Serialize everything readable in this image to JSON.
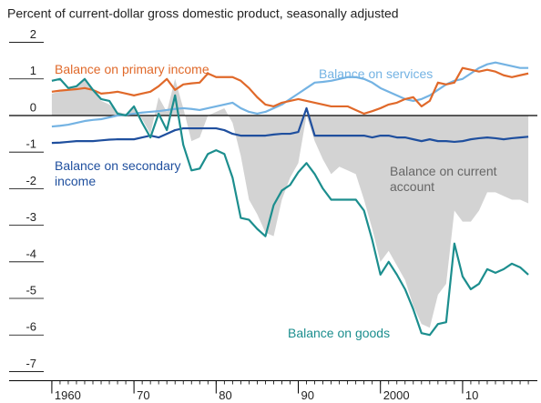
{
  "chart_data": {
    "type": "line",
    "title": "Percent of current-dollar gross domestic product, seasonally adjusted",
    "x": [
      1960,
      1961,
      1962,
      1963,
      1964,
      1965,
      1966,
      1967,
      1968,
      1969,
      1970,
      1971,
      1972,
      1973,
      1974,
      1975,
      1976,
      1977,
      1978,
      1979,
      1980,
      1981,
      1982,
      1983,
      1984,
      1985,
      1986,
      1987,
      1988,
      1989,
      1990,
      1991,
      1992,
      1993,
      1994,
      1995,
      1996,
      1997,
      1998,
      1999,
      2000,
      2001,
      2002,
      2003,
      2004,
      2005,
      2006,
      2007,
      2008,
      2009,
      2010,
      2011,
      2012,
      2013,
      2014,
      2015,
      2016,
      2017,
      2018
    ],
    "xlim": [
      1954.8,
      2019.1
    ],
    "xticks": [
      {
        "value": 1960,
        "label": "1960"
      },
      {
        "value": 1970,
        "label": "70"
      },
      {
        "value": 1980,
        "label": "80"
      },
      {
        "value": 1990,
        "label": "90"
      },
      {
        "value": 2000,
        "label": "2000"
      },
      {
        "value": 2010,
        "label": "10"
      }
    ],
    "ylim": [
      -7.25,
      2.3
    ],
    "yticks": [
      2,
      1,
      0,
      -1,
      -2,
      -3,
      -4,
      -5,
      -6,
      -7
    ],
    "series": [
      {
        "name": "Balance on current account",
        "kind": "area",
        "color": "#d3d3d3",
        "values": [
          0.6,
          0.65,
          0.7,
          0.8,
          1.0,
          0.7,
          0.4,
          0.3,
          0.1,
          0.05,
          0.2,
          -0.1,
          -0.5,
          0.5,
          0.1,
          1.0,
          0.2,
          -0.7,
          -0.6,
          0.0,
          0.1,
          0.2,
          -0.2,
          -1.1,
          -2.3,
          -2.7,
          -3.2,
          -3.3,
          -2.3,
          -1.7,
          -1.3,
          0.0,
          -0.7,
          -1.2,
          -1.6,
          -1.4,
          -1.5,
          -1.6,
          -2.3,
          -3.1,
          -4.0,
          -3.7,
          -4.1,
          -4.5,
          -5.2,
          -5.7,
          -5.8,
          -4.9,
          -4.6,
          -2.6,
          -2.9,
          -2.9,
          -2.6,
          -2.1,
          -2.1,
          -2.2,
          -2.3,
          -2.3,
          -2.4
        ]
      },
      {
        "name": "Balance on services",
        "color": "#74b3e3",
        "values": [
          -0.3,
          -0.28,
          -0.25,
          -0.2,
          -0.15,
          -0.12,
          -0.1,
          -0.05,
          0,
          0.02,
          0.05,
          0.08,
          0.1,
          0.12,
          0.15,
          0.18,
          0.2,
          0.18,
          0.15,
          0.2,
          0.25,
          0.3,
          0.35,
          0.2,
          0.1,
          0.05,
          0.1,
          0.2,
          0.3,
          0.45,
          0.6,
          0.75,
          0.9,
          0.92,
          0.95,
          1.0,
          1.05,
          1.05,
          1.0,
          0.9,
          0.75,
          0.65,
          0.55,
          0.45,
          0.4,
          0.45,
          0.55,
          0.7,
          0.85,
          0.95,
          1.0,
          1.15,
          1.3,
          1.4,
          1.45,
          1.4,
          1.35,
          1.3,
          1.3
        ]
      },
      {
        "name": "Balance on primary income",
        "color": "#e0692a",
        "values": [
          0.65,
          0.68,
          0.7,
          0.72,
          0.75,
          0.7,
          0.6,
          0.62,
          0.65,
          0.6,
          0.55,
          0.6,
          0.65,
          0.8,
          1.0,
          0.7,
          0.85,
          0.88,
          0.9,
          1.15,
          1.05,
          1.05,
          1.05,
          0.95,
          0.75,
          0.5,
          0.3,
          0.25,
          0.35,
          0.4,
          0.45,
          0.4,
          0.35,
          0.3,
          0.25,
          0.25,
          0.25,
          0.15,
          0.05,
          0.12,
          0.2,
          0.3,
          0.35,
          0.45,
          0.5,
          0.25,
          0.4,
          0.9,
          0.85,
          0.9,
          1.3,
          1.25,
          1.2,
          1.25,
          1.2,
          1.1,
          1.05,
          1.1,
          1.15
        ]
      },
      {
        "name": "Balance on secondary income",
        "color": "#1f4f9e",
        "values": [
          -0.75,
          -0.74,
          -0.72,
          -0.7,
          -0.7,
          -0.7,
          -0.68,
          -0.66,
          -0.65,
          -0.65,
          -0.65,
          -0.6,
          -0.55,
          -0.6,
          -0.5,
          -0.4,
          -0.35,
          -0.35,
          -0.35,
          -0.35,
          -0.35,
          -0.4,
          -0.5,
          -0.55,
          -0.55,
          -0.55,
          -0.55,
          -0.52,
          -0.5,
          -0.5,
          -0.45,
          0.2,
          -0.55,
          -0.55,
          -0.55,
          -0.55,
          -0.55,
          -0.55,
          -0.55,
          -0.6,
          -0.55,
          -0.55,
          -0.6,
          -0.6,
          -0.65,
          -0.7,
          -0.65,
          -0.7,
          -0.7,
          -0.72,
          -0.7,
          -0.65,
          -0.62,
          -0.6,
          -0.62,
          -0.65,
          -0.62,
          -0.6,
          -0.58
        ]
      },
      {
        "name": "Balance on goods",
        "color": "#1c8e8e",
        "values": [
          0.95,
          1.0,
          0.75,
          0.8,
          1.0,
          0.7,
          0.45,
          0.4,
          0.05,
          0.0,
          0.25,
          -0.2,
          -0.6,
          0.05,
          -0.4,
          0.55,
          -0.8,
          -1.5,
          -1.45,
          -1.05,
          -0.95,
          -1.05,
          -1.7,
          -2.8,
          -2.85,
          -3.1,
          -3.3,
          -2.45,
          -2.05,
          -1.9,
          -1.55,
          -1.3,
          -1.6,
          -2.0,
          -2.3,
          -2.3,
          -2.3,
          -2.3,
          -2.6,
          -3.4,
          -4.35,
          -4.0,
          -4.35,
          -4.75,
          -5.3,
          -5.95,
          -6.0,
          -5.7,
          -5.65,
          -3.5,
          -4.4,
          -4.75,
          -4.6,
          -4.2,
          -4.3,
          -4.2,
          -4.05,
          -4.15,
          -4.35
        ]
      }
    ]
  }
}
